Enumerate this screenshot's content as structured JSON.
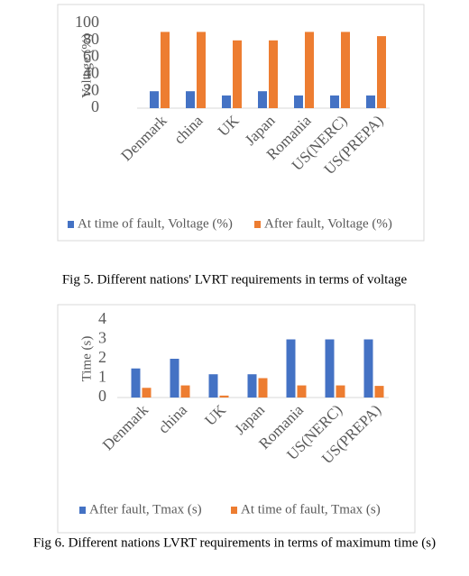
{
  "chart_data": [
    {
      "type": "bar",
      "ylabel": "Voltage (%)",
      "categories": [
        "Denmark",
        "china",
        "UK",
        "Japan",
        "Romania",
        "US(NERC)",
        "US(PREPA)"
      ],
      "series": [
        {
          "name": "At time of fault, Voltage (%)",
          "color": "#4472c4",
          "values": [
            20,
            20,
            15,
            20,
            15,
            15,
            15
          ]
        },
        {
          "name": "After fault, Voltage (%)",
          "color": "#ed7d31",
          "values": [
            90,
            90,
            80,
            80,
            90,
            90,
            85
          ]
        }
      ],
      "ylim": [
        0,
        100
      ],
      "yticks": [
        0,
        20,
        40,
        60,
        80,
        100
      ],
      "caption": "Fig 5. Different nations' LVRT requirements in terms of voltage"
    },
    {
      "type": "bar",
      "ylabel": "Time (s)",
      "categories": [
        "Denmark",
        "china",
        "UK",
        "Japan",
        "Romania",
        "US(NERC)",
        "US(PREPA)"
      ],
      "series": [
        {
          "name": "After fault, Tmax (s)",
          "color": "#4472c4",
          "values": [
            1.5,
            2,
            1.2,
            1.2,
            3,
            3,
            3
          ]
        },
        {
          "name": "At time of fault, Tmax (s)",
          "color": "#ed7d31",
          "values": [
            0.5,
            0.625,
            0.1,
            1,
            0.625,
            0.625,
            0.6
          ]
        }
      ],
      "ylim": [
        0,
        4
      ],
      "yticks": [
        0,
        1,
        2,
        3,
        4
      ],
      "caption": "Fig 6. Different nations LVRT requirements in terms of maximum time (s)"
    }
  ]
}
